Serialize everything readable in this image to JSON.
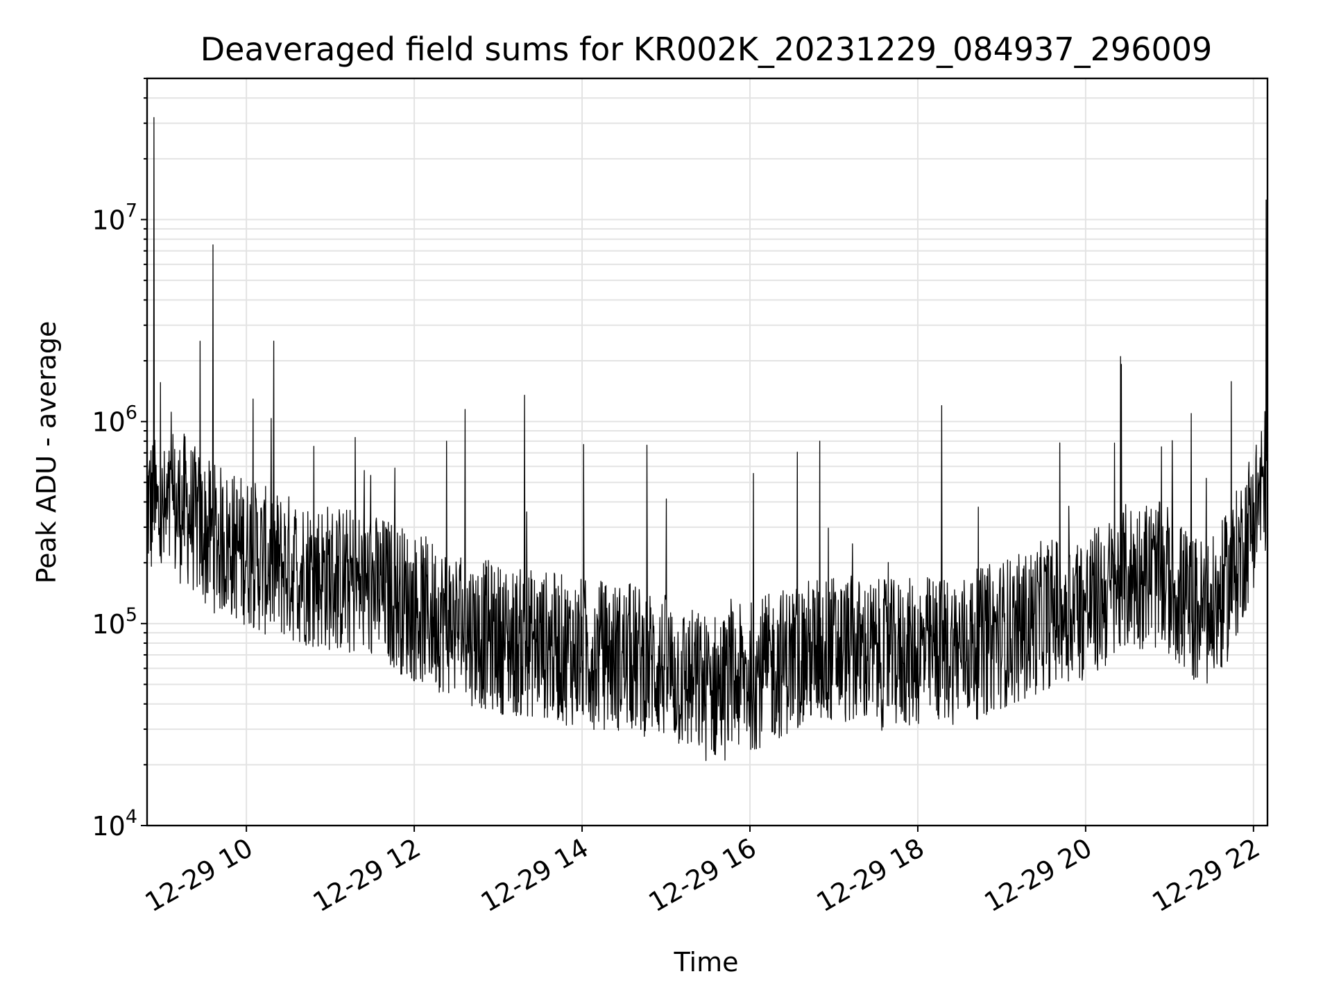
{
  "chart_data": {
    "type": "line",
    "title": "Deaveraged field sums for KR002K_20231229_084937_296009",
    "xlabel": "Time",
    "ylabel": "Peak ADU - average",
    "xscale": "time",
    "yscale": "log",
    "xlim": [
      "2023-12-29 08:49",
      "2023-12-29 22:10"
    ],
    "ylim": [
      10000,
      50000000
    ],
    "grid": true,
    "x_ticks": [
      "12-29 10",
      "12-29 12",
      "12-29 14",
      "12-29 16",
      "12-29 18",
      "12-29 20",
      "12-29 22"
    ],
    "x_tick_times": [
      "2023-12-29 10:00",
      "2023-12-29 12:00",
      "2023-12-29 14:00",
      "2023-12-29 16:00",
      "2023-12-29 18:00",
      "2023-12-29 20:00",
      "2023-12-29 22:00"
    ],
    "y_ticks": [
      {
        "base": "10",
        "exp": "4",
        "value": 10000
      },
      {
        "base": "10",
        "exp": "5",
        "value": 100000
      },
      {
        "base": "10",
        "exp": "6",
        "value": 1000000
      },
      {
        "base": "10",
        "exp": "7",
        "value": 10000000
      }
    ],
    "line_color": "#000000",
    "series": [
      {
        "x": [
          "08:49",
          "09:00",
          "09:15",
          "09:30",
          "09:45",
          "10:00",
          "10:15",
          "10:30",
          "10:45",
          "11:00",
          "11:15",
          "11:30",
          "11:45",
          "12:00",
          "12:15",
          "12:30",
          "12:45",
          "13:00",
          "13:15",
          "13:30",
          "13:45",
          "14:00",
          "14:15",
          "14:30",
          "14:45",
          "15:00",
          "15:15",
          "15:30",
          "15:45",
          "16:00",
          "16:15",
          "16:30",
          "16:45",
          "17:00",
          "17:15",
          "17:30",
          "17:45",
          "18:00",
          "18:15",
          "18:30",
          "18:45",
          "19:00",
          "19:15",
          "19:30",
          "19:45",
          "20:00",
          "20:15",
          "20:30",
          "20:45",
          "21:00",
          "21:15",
          "21:30",
          "21:45",
          "22:00",
          "22:10"
        ],
        "y": [
          400000,
          320000,
          380000,
          280000,
          250000,
          230000,
          200000,
          190000,
          180000,
          170000,
          160000,
          150000,
          140000,
          120000,
          110000,
          100000,
          90000,
          85000,
          80000,
          80000,
          75000,
          72000,
          70000,
          68000,
          65000,
          60000,
          52000,
          48000,
          50000,
          55000,
          60000,
          68000,
          72000,
          75000,
          73000,
          70000,
          70000,
          72000,
          75000,
          75000,
          80000,
          90000,
          95000,
          110000,
          120000,
          120000,
          140000,
          170000,
          180000,
          160000,
          120000,
          110000,
          170000,
          350000,
          550000
        ],
        "spikes": [
          {
            "x": "08:54",
            "y": 32000000
          },
          {
            "x": "09:27",
            "y": 2500000
          },
          {
            "x": "09:36",
            "y": 7500000
          },
          {
            "x": "12:23",
            "y": 800000
          },
          {
            "x": "13:19",
            "y": 1350000
          },
          {
            "x": "14:01",
            "y": 770000
          },
          {
            "x": "16:50",
            "y": 800000
          },
          {
            "x": "18:17",
            "y": 1200000
          },
          {
            "x": "20:25",
            "y": 2100000
          },
          {
            "x": "22:09",
            "y": 12500000
          }
        ]
      }
    ]
  }
}
